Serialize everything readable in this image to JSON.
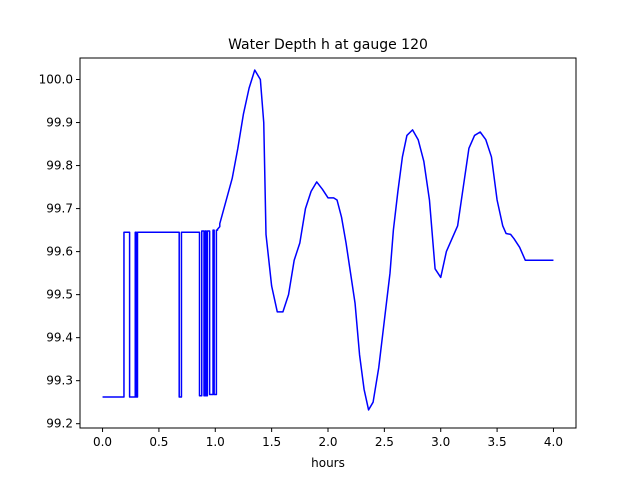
{
  "chart_data": {
    "type": "line",
    "title": "Water Depth h at gauge 120",
    "xlabel": "hours",
    "ylabel": "",
    "xlim": [
      -0.2,
      4.2
    ],
    "ylim": [
      99.19,
      100.05
    ],
    "xticks": [
      0.0,
      0.5,
      1.0,
      1.5,
      2.0,
      2.5,
      3.0,
      3.5,
      4.0
    ],
    "xtick_labels": [
      "0.0",
      "0.5",
      "1.0",
      "1.5",
      "2.0",
      "2.5",
      "3.0",
      "3.5",
      "4.0"
    ],
    "yticks": [
      99.2,
      99.3,
      99.4,
      99.5,
      99.6,
      99.7,
      99.8,
      99.9,
      100.0
    ],
    "ytick_labels": [
      "99.2",
      "99.3",
      "99.4",
      "99.5",
      "99.6",
      "99.7",
      "99.8",
      "99.9",
      "100.0"
    ],
    "grid": false,
    "line_color": "#0000ff",
    "series": [
      {
        "x": [
          0.0,
          0.19,
          0.19,
          0.24,
          0.24,
          0.29,
          0.29,
          0.3,
          0.3,
          0.31,
          0.31,
          0.68,
          0.68,
          0.7,
          0.7,
          0.86,
          0.86,
          0.88,
          0.88,
          0.9,
          0.9,
          0.91,
          0.91,
          0.92,
          0.92,
          0.93,
          0.93,
          0.95,
          0.95,
          0.98,
          0.98,
          0.99,
          0.99,
          1.01,
          1.01,
          1.02,
          1.02,
          1.04,
          1.04,
          1.15,
          1.2,
          1.25,
          1.3,
          1.35,
          1.4,
          1.43,
          1.45,
          1.5,
          1.55,
          1.6,
          1.65,
          1.7,
          1.75,
          1.8,
          1.85,
          1.9,
          1.95,
          2.0,
          2.05,
          2.08,
          2.12,
          2.16,
          2.2,
          2.24,
          2.28,
          2.32,
          2.36,
          2.4,
          2.45,
          2.5,
          2.55,
          2.58,
          2.62,
          2.66,
          2.7,
          2.75,
          2.8,
          2.85,
          2.9,
          2.95,
          3.0,
          3.05,
          3.1,
          3.15,
          3.2,
          3.25,
          3.3,
          3.35,
          3.4,
          3.45,
          3.5,
          3.55,
          3.58,
          3.62,
          3.65,
          3.7,
          3.75,
          3.8,
          3.85,
          3.9,
          3.95,
          4.0
        ],
        "y": [
          99.262,
          99.262,
          99.645,
          99.645,
          99.262,
          99.262,
          99.645,
          99.645,
          99.262,
          99.262,
          99.645,
          99.645,
          99.262,
          99.262,
          99.645,
          99.645,
          99.265,
          99.265,
          99.648,
          99.648,
          99.265,
          99.265,
          99.648,
          99.648,
          99.265,
          99.265,
          99.648,
          99.648,
          99.268,
          99.268,
          99.65,
          99.65,
          99.268,
          99.268,
          99.65,
          99.65,
          99.652,
          99.658,
          99.665,
          99.77,
          99.84,
          99.92,
          99.98,
          100.022,
          100.0,
          99.9,
          99.64,
          99.52,
          99.46,
          99.46,
          99.5,
          99.58,
          99.62,
          99.7,
          99.74,
          99.762,
          99.745,
          99.725,
          99.725,
          99.72,
          99.68,
          99.62,
          99.55,
          99.48,
          99.36,
          99.28,
          99.232,
          99.25,
          99.33,
          99.44,
          99.55,
          99.65,
          99.74,
          99.82,
          99.87,
          99.883,
          99.86,
          99.81,
          99.72,
          99.56,
          99.54,
          99.6,
          99.63,
          99.66,
          99.75,
          99.84,
          99.87,
          99.878,
          99.86,
          99.82,
          99.72,
          99.66,
          99.642,
          99.64,
          99.63,
          99.61,
          99.58,
          99.58,
          99.58,
          99.58,
          99.58,
          99.58
        ]
      }
    ]
  }
}
